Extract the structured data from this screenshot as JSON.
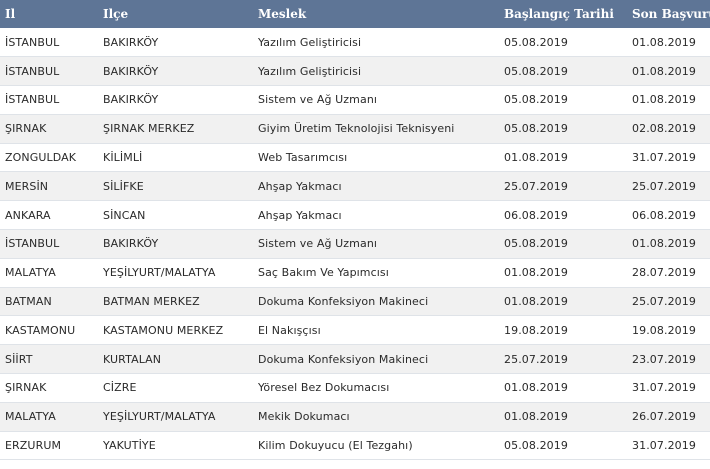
{
  "table": {
    "headers": [
      "Il",
      "Ilçe",
      "Meslek",
      "Başlangıç Tarihi",
      "Son Başvuru"
    ],
    "rows": [
      [
        "İSTANBUL",
        "BAKIRKÖY",
        "Yazılım Geliştiricisi",
        "05.08.2019",
        "01.08.2019"
      ],
      [
        "İSTANBUL",
        "BAKIRKÖY",
        "Yazılım Geliştiricisi",
        "05.08.2019",
        "01.08.2019"
      ],
      [
        "İSTANBUL",
        "BAKIRKÖY",
        "Sistem ve Ağ Uzmanı",
        "05.08.2019",
        "01.08.2019"
      ],
      [
        "ŞIRNAK",
        "ŞIRNAK MERKEZ",
        "Giyim Üretim Teknolojisi Teknisyeni",
        "05.08.2019",
        "02.08.2019"
      ],
      [
        "ZONGULDAK",
        "KİLİMLİ",
        "Web Tasarımcısı",
        "01.08.2019",
        "31.07.2019"
      ],
      [
        "MERSİN",
        "SİLİFKE",
        "Ahşap Yakmacı",
        "25.07.2019",
        "25.07.2019"
      ],
      [
        "ANKARA",
        "SİNCAN",
        "Ahşap Yakmacı",
        "06.08.2019",
        "06.08.2019"
      ],
      [
        "İSTANBUL",
        "BAKIRKÖY",
        "Sistem ve Ağ Uzmanı",
        "05.08.2019",
        "01.08.2019"
      ],
      [
        "MALATYA",
        "YEŞİLYURT/MALATYA",
        "Saç Bakım Ve Yapımcısı",
        "01.08.2019",
        "28.07.2019"
      ],
      [
        "BATMAN",
        "BATMAN MERKEZ",
        "Dokuma Konfeksiyon Makineci",
        "01.08.2019",
        "25.07.2019"
      ],
      [
        "KASTAMONU",
        "KASTAMONU MERKEZ",
        "El Nakışçısı",
        "19.08.2019",
        "19.08.2019"
      ],
      [
        "SİİRT",
        "KURTALAN",
        "Dokuma Konfeksiyon Makineci",
        "25.07.2019",
        "23.07.2019"
      ],
      [
        "ŞIRNAK",
        "CİZRE",
        "Yöresel Bez Dokumacısı",
        "01.08.2019",
        "31.07.2019"
      ],
      [
        "MALATYA",
        "YEŞİLYURT/MALATYA",
        "Mekik Dokumacı",
        "01.08.2019",
        "26.07.2019"
      ],
      [
        "ERZURUM",
        "YAKUTİYE",
        "Kilim Dokuyucu (El Tezgahı)",
        "05.08.2019",
        "31.07.2019"
      ]
    ]
  }
}
